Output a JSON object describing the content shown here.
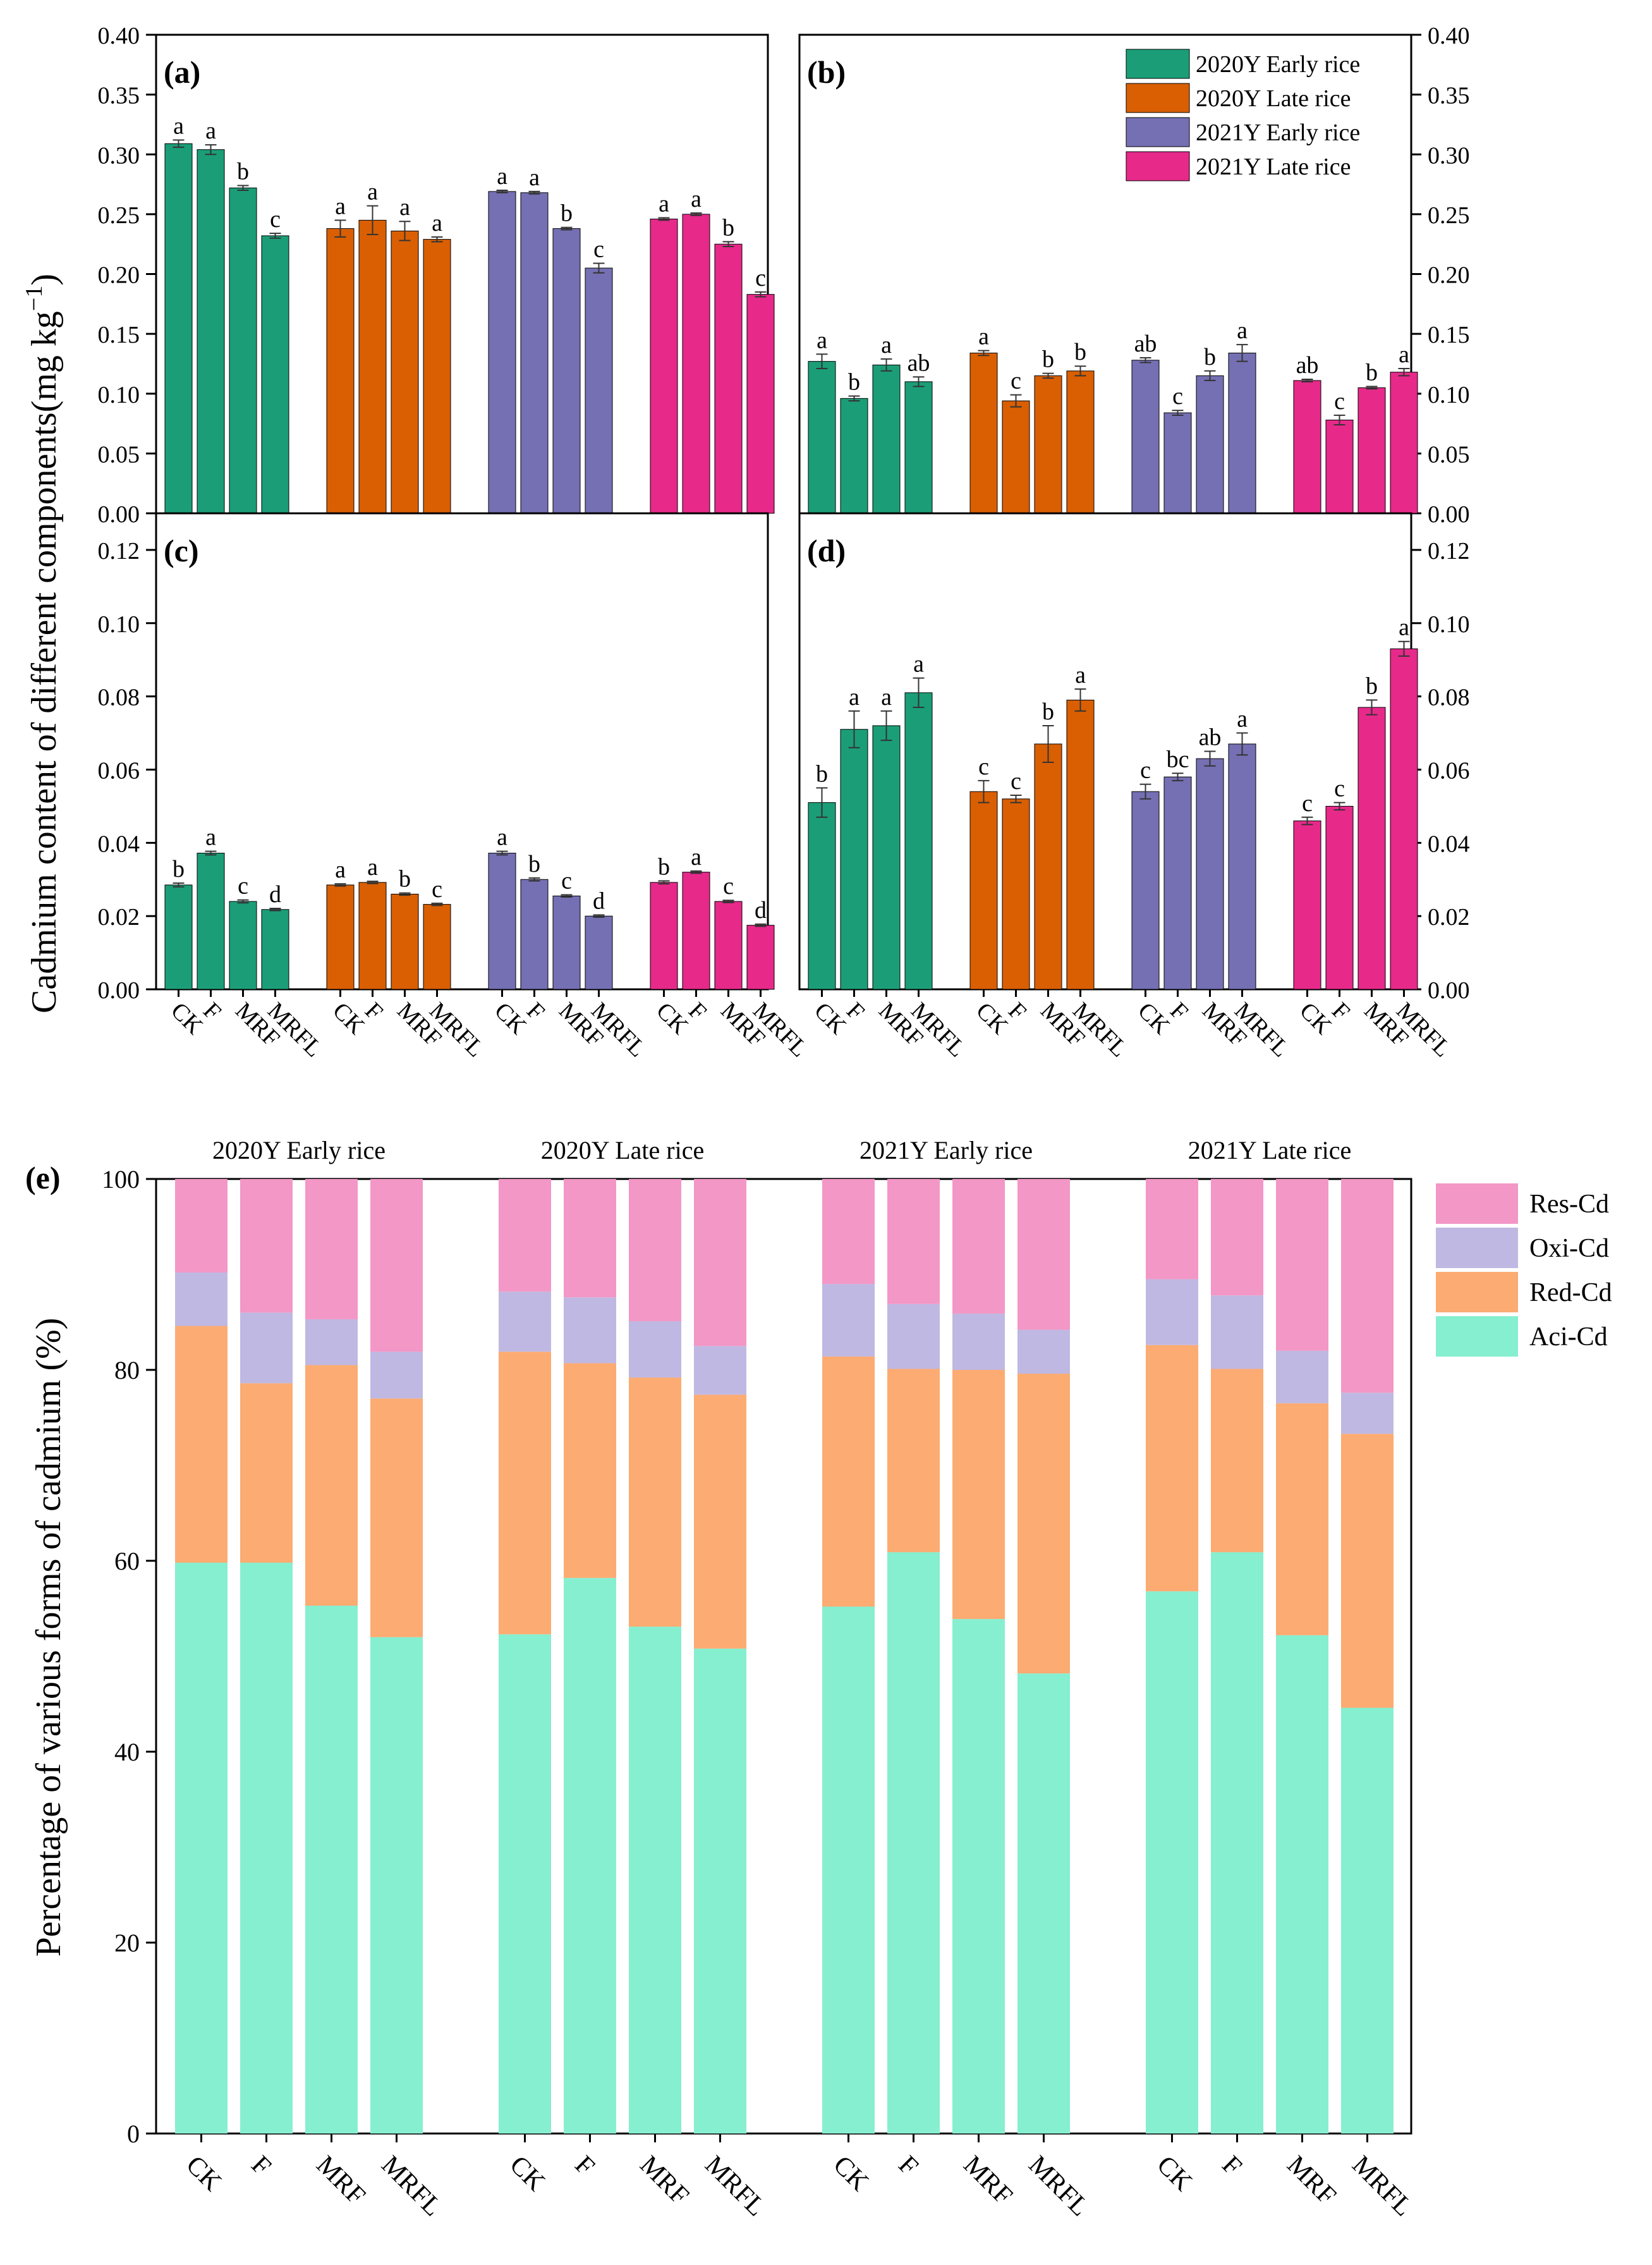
{
  "figure": {
    "y_title_top": "Cadmium content of different components(mg kg",
    "y_title_sup": "−1",
    "y_title_close": ")",
    "y_title_bottom": "Percentage of various forms of cadmium (%)"
  },
  "legend_top": [
    {
      "label": "2020Y Early rice",
      "color": "#1b9e77"
    },
    {
      "label": "2020Y Late rice",
      "color": "#d95f02"
    },
    {
      "label": "2021Y Early rice",
      "color": "#7570b3"
    },
    {
      "label": "2021Y Late rice",
      "color": "#e7298a"
    }
  ],
  "chart_data": [
    {
      "panel": "(a)",
      "type": "bar",
      "groups": [
        "2020Y Early rice",
        "2020Y Late rice",
        "2021Y Early rice",
        "2021Y Late rice"
      ],
      "categories": [
        "CK",
        "F",
        "MRF",
        "MRFL"
      ],
      "ylim": [
        0,
        0.4
      ],
      "yticks": [
        "0.00",
        "0.05",
        "0.10",
        "0.15",
        "0.20",
        "0.25",
        "0.30",
        "0.35",
        "0.40"
      ],
      "axis_side": "left",
      "series": [
        {
          "name": "2020Y Early rice",
          "values": [
            0.309,
            0.304,
            0.272,
            0.232
          ],
          "errors": [
            0.003,
            0.004,
            0.002,
            0.002
          ],
          "letters": [
            "a",
            "a",
            "b",
            "c"
          ]
        },
        {
          "name": "2020Y Late rice",
          "values": [
            0.238,
            0.245,
            0.236,
            0.229
          ],
          "errors": [
            0.007,
            0.012,
            0.008,
            0.002
          ],
          "letters": [
            "a",
            "a",
            "a",
            "a"
          ]
        },
        {
          "name": "2021Y Early rice",
          "values": [
            0.269,
            0.268,
            0.238,
            0.205
          ],
          "errors": [
            0.001,
            0.001,
            0.001,
            0.004
          ],
          "letters": [
            "a",
            "a",
            "b",
            "c"
          ]
        },
        {
          "name": "2021Y Late rice",
          "values": [
            0.246,
            0.25,
            0.225,
            0.183
          ],
          "errors": [
            0.001,
            0.001,
            0.002,
            0.002
          ],
          "letters": [
            "a",
            "a",
            "b",
            "c"
          ]
        }
      ]
    },
    {
      "panel": "(b)",
      "type": "bar",
      "groups": [
        "2020Y Early rice",
        "2020Y Late rice",
        "2021Y Early rice",
        "2021Y Late rice"
      ],
      "categories": [
        "CK",
        "F",
        "MRF",
        "MRFL"
      ],
      "ylim": [
        0,
        0.4
      ],
      "yticks": [
        "0.00",
        "0.05",
        "0.10",
        "0.15",
        "0.20",
        "0.25",
        "0.30",
        "0.35",
        "0.40"
      ],
      "axis_side": "right",
      "series": [
        {
          "name": "2020Y Early rice",
          "values": [
            0.127,
            0.096,
            0.124,
            0.11
          ],
          "errors": [
            0.006,
            0.002,
            0.005,
            0.004
          ],
          "letters": [
            "a",
            "b",
            "a",
            "ab"
          ]
        },
        {
          "name": "2020Y Late rice",
          "values": [
            0.134,
            0.094,
            0.115,
            0.119
          ],
          "errors": [
            0.002,
            0.005,
            0.002,
            0.004
          ],
          "letters": [
            "a",
            "c",
            "b",
            "b"
          ]
        },
        {
          "name": "2021Y Early rice",
          "values": [
            0.128,
            0.084,
            0.115,
            0.134
          ],
          "errors": [
            0.002,
            0.002,
            0.004,
            0.007
          ],
          "letters": [
            "ab",
            "c",
            "b",
            "a"
          ]
        },
        {
          "name": "2021Y Late rice",
          "values": [
            0.111,
            0.078,
            0.105,
            0.118
          ],
          "errors": [
            0.001,
            0.004,
            0.001,
            0.003
          ],
          "letters": [
            "ab",
            "c",
            "b",
            "a"
          ]
        }
      ]
    },
    {
      "panel": "(c)",
      "type": "bar",
      "groups": [
        "2020Y Early rice",
        "2020Y Late rice",
        "2021Y Early rice",
        "2021Y Late rice"
      ],
      "categories": [
        "CK",
        "F",
        "MRF",
        "MRFL"
      ],
      "ylim": [
        0,
        0.13
      ],
      "yticks": [
        "0.00",
        "0.02",
        "0.04",
        "0.06",
        "0.08",
        "0.10",
        "0.12"
      ],
      "axis_side": "left",
      "series": [
        {
          "name": "2020Y Early rice",
          "values": [
            0.0285,
            0.0372,
            0.024,
            0.0218
          ],
          "errors": [
            0.0005,
            0.0005,
            0.0004,
            0.0003
          ],
          "letters": [
            "b",
            "a",
            "c",
            "d"
          ]
        },
        {
          "name": "2020Y Late rice",
          "values": [
            0.0285,
            0.0292,
            0.026,
            0.0232
          ],
          "errors": [
            0.0003,
            0.0003,
            0.0003,
            0.0003
          ],
          "letters": [
            "a",
            "a",
            "b",
            "c"
          ]
        },
        {
          "name": "2021Y Early rice",
          "values": [
            0.0372,
            0.03,
            0.0255,
            0.02
          ],
          "errors": [
            0.0005,
            0.0004,
            0.0003,
            0.0003
          ],
          "letters": [
            "a",
            "b",
            "c",
            "d"
          ]
        },
        {
          "name": "2021Y Late rice",
          "values": [
            0.0292,
            0.032,
            0.024,
            0.0175
          ],
          "errors": [
            0.0004,
            0.0003,
            0.0003,
            0.0003
          ],
          "letters": [
            "b",
            "a",
            "c",
            "d"
          ]
        }
      ]
    },
    {
      "panel": "(d)",
      "type": "bar",
      "groups": [
        "2020Y Early rice",
        "2020Y Late rice",
        "2021Y Early rice",
        "2021Y Late rice"
      ],
      "categories": [
        "CK",
        "F",
        "MRF",
        "MRFL"
      ],
      "ylim": [
        0,
        0.13
      ],
      "yticks": [
        "0.00",
        "0.02",
        "0.04",
        "0.06",
        "0.08",
        "0.10",
        "0.12"
      ],
      "axis_side": "right",
      "series": [
        {
          "name": "2020Y Early rice",
          "values": [
            0.051,
            0.071,
            0.072,
            0.081
          ],
          "errors": [
            0.004,
            0.005,
            0.004,
            0.004
          ],
          "letters": [
            "b",
            "a",
            "a",
            "a"
          ]
        },
        {
          "name": "2020Y Late rice",
          "values": [
            0.054,
            0.052,
            0.067,
            0.079
          ],
          "errors": [
            0.003,
            0.001,
            0.005,
            0.003
          ],
          "letters": [
            "c",
            "c",
            "b",
            "a"
          ]
        },
        {
          "name": "2021Y Early rice",
          "values": [
            0.054,
            0.058,
            0.063,
            0.067
          ],
          "errors": [
            0.002,
            0.001,
            0.002,
            0.003
          ],
          "letters": [
            "c",
            "bc",
            "ab",
            "a"
          ]
        },
        {
          "name": "2021Y Late rice",
          "values": [
            0.046,
            0.05,
            0.077,
            0.093
          ],
          "errors": [
            0.001,
            0.001,
            0.002,
            0.002
          ],
          "letters": [
            "c",
            "c",
            "b",
            "a"
          ]
        }
      ]
    },
    {
      "panel": "(e)",
      "type": "bar",
      "stacked": true,
      "ylabel": "Percentage of various forms of cadmium (%)",
      "ylim": [
        0,
        100
      ],
      "yticks": [
        "0",
        "20",
        "40",
        "60",
        "80",
        "100"
      ],
      "groups": [
        "2020Y Early rice",
        "2020Y Late rice",
        "2021Y Early rice",
        "2021Y Late rice"
      ],
      "categories": [
        "CK",
        "F",
        "MRF",
        "MRFL"
      ],
      "legend": [
        {
          "label": "Res-Cd",
          "color": "#f397c6"
        },
        {
          "label": "Oxi-Cd",
          "color": "#bfb8e2"
        },
        {
          "label": "Red-Cd",
          "color": "#fcab72"
        },
        {
          "label": "Aci-Cd",
          "color": "#86efd0"
        }
      ],
      "stack_order": [
        "Aci-Cd",
        "Red-Cd",
        "Oxi-Cd",
        "Res-Cd"
      ],
      "cumulative_tops": {
        "Aci-Cd": [
          [
            59.8,
            59.8,
            55.3,
            52.0
          ],
          [
            52.3,
            58.2,
            53.1,
            50.8
          ],
          [
            55.2,
            60.9,
            53.9,
            48.2
          ],
          [
            56.8,
            60.9,
            52.2,
            44.6
          ]
        ],
        "Red-Cd": [
          [
            84.6,
            78.6,
            80.5,
            77.0
          ],
          [
            81.9,
            80.7,
            79.2,
            77.4
          ],
          [
            81.4,
            80.1,
            80.0,
            79.6
          ],
          [
            82.6,
            80.1,
            76.5,
            73.3
          ]
        ],
        "Oxi-Cd": [
          [
            90.2,
            86.0,
            85.3,
            81.9
          ],
          [
            88.2,
            87.6,
            85.1,
            82.5
          ],
          [
            89.0,
            86.9,
            85.9,
            84.2
          ],
          [
            89.5,
            87.8,
            82.0,
            77.6
          ]
        ],
        "Res-Cd": [
          [
            100,
            100,
            100,
            100
          ],
          [
            100,
            100,
            100,
            100
          ],
          [
            100,
            100,
            100,
            100
          ],
          [
            100,
            100,
            100,
            100
          ]
        ]
      }
    }
  ]
}
